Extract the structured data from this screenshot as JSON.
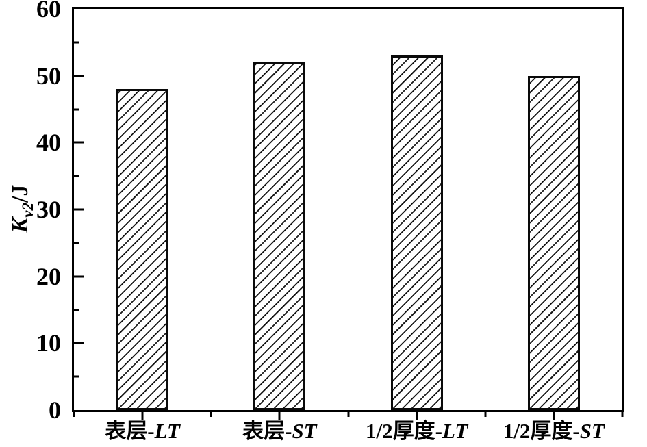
{
  "chart_data": {
    "type": "bar",
    "title": "",
    "ylabel": {
      "symbol": "K",
      "subscript": "v2",
      "unit": "/J",
      "plain": "Kv2/J"
    },
    "xlabel": "",
    "ylim": [
      0,
      60
    ],
    "yticks_major": [
      0,
      10,
      20,
      30,
      40,
      50,
      60
    ],
    "yticks_minor": [
      5,
      15,
      25,
      35,
      45,
      55
    ],
    "categories": [
      {
        "label": "表层-LT",
        "prefix": "表层",
        "suffix": "LT"
      },
      {
        "label": "表层-ST",
        "prefix": "表层",
        "suffix": "ST"
      },
      {
        "label": "1/2厚度-LT",
        "prefix": "1/2厚度",
        "suffix": "LT"
      },
      {
        "label": "1/2厚度-ST",
        "prefix": "1/2厚度",
        "suffix": "ST"
      }
    ],
    "values": [
      48,
      52,
      53,
      50
    ],
    "grid": false,
    "legend": "none",
    "bar_style": {
      "fill": "#ffffff",
      "hatch": "forward-diagonal",
      "hatch_color": "#1a1a1a",
      "edge_color": "#000000"
    },
    "colors": {
      "axis": "#000000",
      "background": "#ffffff",
      "text": "#000000"
    }
  }
}
